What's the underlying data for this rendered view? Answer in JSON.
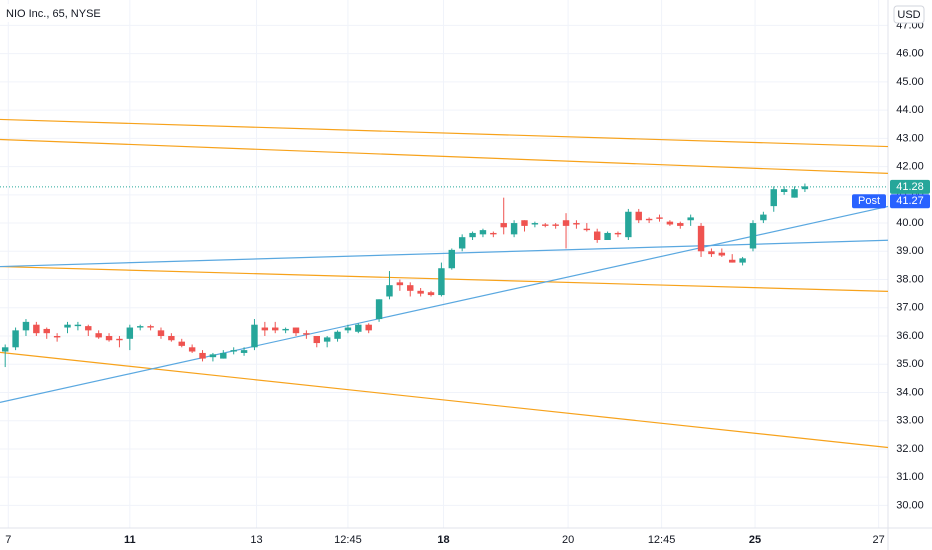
{
  "chart_data": {
    "type": "candlestick",
    "title": "NIO Inc., 65, NYSE",
    "currency": "USD",
    "up_color": "#26a69a",
    "down_color": "#ef5350",
    "open": [
      35.45,
      35.6,
      36.2,
      36.4,
      36.25,
      36.0,
      36.3,
      36.35,
      36.35,
      36.1,
      36.0,
      35.9,
      35.9,
      36.3,
      36.35,
      36.2,
      36.0,
      35.8,
      35.6,
      35.4,
      35.25,
      35.2,
      35.45,
      35.4,
      35.6,
      36.3,
      36.3,
      36.2,
      36.3,
      36.1,
      36.0,
      35.8,
      35.9,
      36.2,
      36.15,
      36.4,
      36.6,
      37.4,
      37.9,
      37.8,
      37.6,
      37.55,
      37.45,
      38.4,
      39.1,
      39.5,
      39.6,
      39.65,
      40.0,
      39.6,
      40.1,
      39.95,
      39.95,
      39.95,
      40.1,
      40.0,
      39.8,
      39.7,
      39.4,
      39.65,
      39.5,
      40.4,
      40.15,
      40.2,
      40.05,
      40.0,
      40.1,
      39.9,
      39.0,
      38.95,
      38.7,
      38.6,
      39.1,
      40.1,
      40.6,
      41.1,
      40.9,
      41.2
    ],
    "high": [
      35.7,
      36.3,
      36.6,
      36.5,
      36.3,
      36.1,
      36.5,
      36.5,
      36.4,
      36.2,
      36.1,
      36.0,
      36.4,
      36.4,
      36.4,
      36.3,
      36.1,
      35.9,
      35.7,
      35.5,
      35.4,
      35.5,
      35.6,
      35.6,
      36.6,
      36.5,
      36.5,
      36.3,
      36.3,
      36.2,
      36.0,
      36.0,
      36.2,
      36.4,
      36.45,
      36.45,
      37.3,
      38.3,
      38.0,
      37.9,
      37.7,
      37.6,
      38.6,
      39.1,
      39.6,
      39.7,
      39.8,
      39.7,
      40.9,
      40.1,
      40.1,
      40.05,
      40.0,
      40.0,
      40.35,
      40.1,
      40.0,
      39.8,
      39.7,
      39.7,
      40.5,
      40.5,
      40.2,
      40.3,
      40.1,
      40.05,
      40.3,
      40.0,
      39.1,
      39.1,
      38.9,
      38.8,
      40.1,
      40.4,
      41.3,
      41.3,
      41.3,
      41.4
    ],
    "low": [
      34.9,
      35.5,
      36.0,
      36.0,
      35.9,
      35.8,
      36.1,
      36.2,
      36.0,
      35.9,
      35.8,
      35.6,
      35.5,
      36.2,
      36.2,
      35.9,
      35.8,
      35.6,
      35.4,
      35.1,
      35.1,
      35.2,
      35.35,
      35.3,
      35.5,
      36.0,
      36.1,
      36.1,
      36.0,
      35.9,
      35.6,
      35.6,
      35.8,
      36.1,
      36.1,
      36.1,
      36.5,
      37.3,
      37.6,
      37.4,
      37.4,
      37.4,
      37.4,
      38.35,
      39.0,
      39.4,
      39.5,
      39.5,
      39.6,
      39.5,
      39.7,
      39.85,
      39.85,
      39.8,
      39.1,
      39.8,
      39.7,
      39.3,
      39.4,
      39.5,
      39.4,
      40.0,
      40.0,
      40.05,
      39.9,
      39.8,
      39.9,
      38.8,
      38.8,
      38.8,
      38.6,
      38.5,
      39.0,
      40.0,
      40.4,
      41.0,
      40.9,
      41.1
    ],
    "close": [
      35.6,
      36.2,
      36.5,
      36.1,
      36.1,
      35.95,
      36.4,
      36.4,
      36.2,
      35.95,
      35.85,
      35.85,
      36.3,
      36.35,
      36.3,
      36.0,
      35.85,
      35.65,
      35.45,
      35.2,
      35.35,
      35.4,
      35.5,
      35.5,
      36.4,
      36.2,
      36.2,
      36.25,
      36.1,
      36.05,
      35.75,
      35.95,
      36.15,
      36.3,
      36.4,
      36.2,
      37.3,
      37.8,
      37.8,
      37.6,
      37.5,
      37.45,
      38.4,
      39.05,
      39.5,
      39.65,
      39.75,
      39.6,
      39.85,
      40.0,
      39.9,
      40.0,
      39.9,
      39.9,
      39.9,
      39.95,
      39.75,
      39.4,
      39.65,
      39.6,
      40.4,
      40.1,
      40.1,
      40.15,
      39.95,
      39.9,
      40.2,
      39.0,
      38.9,
      38.85,
      38.6,
      38.75,
      40.0,
      40.3,
      41.2,
      41.2,
      41.2,
      41.3
    ],
    "trend_lines": [
      {
        "color": "#f7a21b",
        "x": [
          -0.5,
          85
        ],
        "values": [
          43.67,
          42.71
        ]
      },
      {
        "color": "#f7a21b",
        "x": [
          -0.5,
          85
        ],
        "values": [
          42.96,
          41.76
        ]
      },
      {
        "color": "#f7a21b",
        "x": [
          -0.5,
          85
        ],
        "values": [
          38.46,
          37.58
        ]
      },
      {
        "color": "#f7a21b",
        "x": [
          -0.5,
          85
        ],
        "values": [
          35.42,
          32.05
        ]
      },
      {
        "color": "#5aa8e0",
        "x": [
          -0.5,
          85
        ],
        "values": [
          38.46,
          39.39
        ]
      },
      {
        "color": "#5aa8e0",
        "x": [
          -0.5,
          85
        ],
        "values": [
          33.65,
          40.59
        ]
      }
    ],
    "last_price": {
      "value": 41.28,
      "label": "41.28",
      "color": "#26a69a"
    },
    "post_price": {
      "name": "Post",
      "value": 41.27,
      "label": "41.27",
      "color": "#2962ff"
    },
    "xlim": [
      -0.5,
      85
    ],
    "ylim": [
      29.2,
      47.9
    ],
    "xticks": [
      {
        "value": 0.3,
        "label": "7"
      },
      {
        "value": 12,
        "label": "11"
      },
      {
        "value": 24.2,
        "label": "13"
      },
      {
        "value": 33,
        "label": "12:45"
      },
      {
        "value": 42.2,
        "label": "18"
      },
      {
        "value": 54.2,
        "label": "20"
      },
      {
        "value": 63.2,
        "label": "12:45"
      },
      {
        "value": 72.2,
        "label": "25"
      },
      {
        "value": 84.1,
        "label": "27"
      }
    ],
    "yticks": [
      {
        "value": 30,
        "label": "30.00"
      },
      {
        "value": 31,
        "label": "31.00"
      },
      {
        "value": 32,
        "label": "32.00"
      },
      {
        "value": 33,
        "label": "33.00"
      },
      {
        "value": 34,
        "label": "34.00"
      },
      {
        "value": 35,
        "label": "35.00"
      },
      {
        "value": 36,
        "label": "36.00"
      },
      {
        "value": 37,
        "label": "37.00"
      },
      {
        "value": 38,
        "label": "38.00"
      },
      {
        "value": 39,
        "label": "39.00"
      },
      {
        "value": 40,
        "label": "40.00"
      },
      {
        "value": 41,
        "label": "41.00"
      },
      {
        "value": 42,
        "label": "42.00"
      },
      {
        "value": 43,
        "label": "43.00"
      },
      {
        "value": 44,
        "label": "44.00"
      },
      {
        "value": 45,
        "label": "45.00"
      },
      {
        "value": 46,
        "label": "46.00"
      },
      {
        "value": 47,
        "label": "47.00"
      }
    ],
    "grid": true
  }
}
